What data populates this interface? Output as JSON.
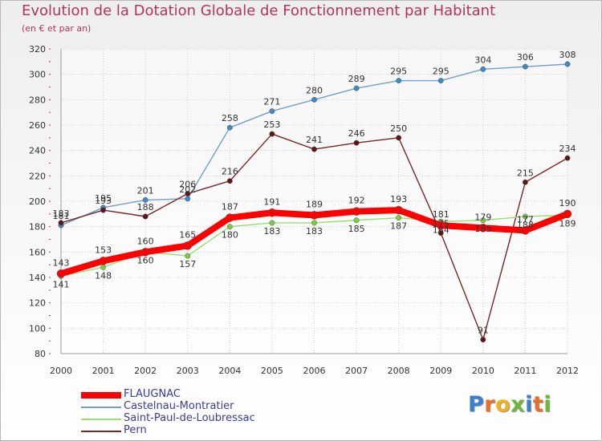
{
  "header": {
    "title": "Evolution de la Dotation Globale de Fonctionnement par Habitant",
    "subtitle": "(en € et par an)"
  },
  "logo": {
    "letters": [
      "P",
      "r",
      "o",
      "x",
      "i",
      "t",
      "i"
    ],
    "colors": [
      "#3a7fd0",
      "#e8702a",
      "#f0b020",
      "#6cb83a",
      "#3a7fd0",
      "#e8702a",
      "#6cb83a"
    ]
  },
  "chart_data": {
    "type": "line",
    "title": "Evolution de la Dotation Globale de Fonctionnement par Habitant",
    "subtitle": "(en € et par an)",
    "xlabel": "",
    "ylabel": "",
    "ylim": [
      80,
      320
    ],
    "yticks": [
      80,
      100,
      120,
      140,
      160,
      180,
      200,
      220,
      240,
      260,
      280,
      300,
      320
    ],
    "grid": true,
    "legend_position": "bottom-left",
    "x": [
      "2000",
      "2001",
      "2002",
      "2003",
      "2004",
      "2005",
      "2006",
      "2007",
      "2008",
      "2009",
      "2010",
      "2011",
      "2012"
    ],
    "series": [
      {
        "name": "Castelnau-Montratier",
        "color": "#6f9fd0",
        "marker": "#3d8ac8",
        "values": [
          181,
          195,
          201,
          202,
          258,
          271,
          280,
          289,
          295,
          295,
          304,
          306,
          308
        ]
      },
      {
        "name": "Pern",
        "color": "#7a2626",
        "marker": "#5e1616",
        "values": [
          183,
          193,
          188,
          206,
          216,
          253,
          241,
          246,
          250,
          175,
          91,
          215,
          234
        ]
      },
      {
        "name": "Saint-Paul-de-Loubressac",
        "color": "#98e070",
        "marker": "#7ccc3c",
        "values": [
          141,
          148,
          160,
          157,
          180,
          183,
          183,
          185,
          187,
          184,
          185,
          188,
          189
        ]
      },
      {
        "name": "FLAUGNAC",
        "color": "#ff0000",
        "marker": "#ff0000",
        "values": [
          143,
          153,
          160,
          165,
          187,
          191,
          189,
          192,
          193,
          181,
          179,
          177,
          190
        ]
      }
    ],
    "legend": [
      {
        "name": "FLAUGNAC",
        "color": "#ff0000"
      },
      {
        "name": "Castelnau-Montratier",
        "color": "#6f9fd0"
      },
      {
        "name": "Saint-Paul-de-Loubressac",
        "color": "#98e070"
      },
      {
        "name": "Pern",
        "color": "#7a2626"
      }
    ]
  }
}
